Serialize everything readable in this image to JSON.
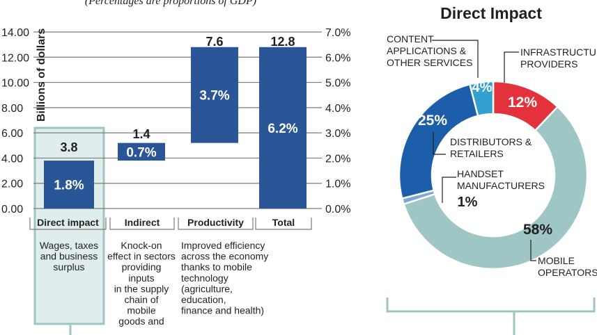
{
  "subtitle": "(Percentages are proportions of GDP)",
  "colors": {
    "bar": "#2a5698",
    "highlight_fill": "#dfeeec",
    "highlight_stroke": "#9dc6c2",
    "grid": "#7a7a7a",
    "text": "#231f20",
    "label_white": "#ffffff",
    "red": "#e3323b",
    "teal": "#9ec6c4",
    "blue": "#1c5eaa",
    "cyan": "#32a0d0",
    "light_blue": "#7fa6d8"
  },
  "chart_data": [
    {
      "type": "bar",
      "subtype": "waterfall",
      "title": "",
      "ylabel": "Billions of dollars",
      "ylim": [
        0,
        14
      ],
      "yticks": [
        "0.00",
        "2.00",
        "4.00",
        "6.00",
        "8.00",
        "10.00",
        "12.00",
        "14.00"
      ],
      "ytick_values": [
        0,
        2,
        4,
        6,
        8,
        10,
        12,
        14
      ],
      "y2ticks": [
        "0.0%",
        "1.0%",
        "2.0%",
        "3.0%",
        "4.0%",
        "5.0%",
        "6.0%",
        "7.0%"
      ],
      "categories": [
        "Direct impact",
        "Indirect",
        "Productivity",
        "Total"
      ],
      "bars": [
        {
          "category": "Direct impact",
          "start": 0.0,
          "end": 3.8,
          "value_label": "3.8",
          "pct_label": "1.8%"
        },
        {
          "category": "Indirect",
          "start": 3.8,
          "end": 5.2,
          "value_label": "1.4",
          "pct_label": "0.7%"
        },
        {
          "category": "Productivity",
          "start": 5.2,
          "end": 12.8,
          "value_label": "7.6",
          "pct_label": "3.7%"
        },
        {
          "category": "Total",
          "start": 0.0,
          "end": 12.8,
          "value_label": "12.8",
          "pct_label": "6.2%"
        }
      ],
      "descriptions": [
        [
          "Wages, taxes",
          "and business",
          "surplus"
        ],
        [
          "Knock-on",
          "effect in sectors",
          "providing",
          "inputs",
          "in the supply",
          "chain of",
          "mobile",
          "goods and"
        ],
        [
          "Improved efficiency",
          "across the economy",
          "thanks to mobile",
          "technology",
          "(agriculture,",
          "education,",
          "finance and health)"
        ],
        []
      ]
    },
    {
      "type": "pie",
      "subtype": "donut",
      "title": "Direct Impact",
      "slices": [
        {
          "name": "INFRASTRUCTURE PROVIDERS",
          "label_lines": [
            "INFRASTRUCTURE",
            "PROVIDERS"
          ],
          "value": 12,
          "value_label": "12%",
          "color": "#e3323b"
        },
        {
          "name": "MOBILE OPERATORS",
          "label_lines": [
            "MOBILE",
            "OPERATORS"
          ],
          "value": 58,
          "value_label": "58%",
          "color": "#9ec6c4"
        },
        {
          "name": "HANDSET MANUFACTURERS",
          "label_lines": [
            "HANDSET",
            "MANUFACTURERS"
          ],
          "value": 1,
          "value_label": "1%",
          "color": "#7fa6d8"
        },
        {
          "name": "DISTRIBUTORS & RETAILERS",
          "label_lines": [
            "DISTRIBUTORS &",
            "RETAILERS"
          ],
          "value": 25,
          "value_label": "25%",
          "color": "#1c5eaa"
        },
        {
          "name": "CONTENT APPLICATIONS & OTHER SERVICES",
          "label_lines": [
            "CONTENT",
            "APPLICATIONS &",
            "OTHER SERVICES"
          ],
          "value": 4,
          "value_label": "4%",
          "color": "#32a0d0"
        }
      ]
    }
  ]
}
